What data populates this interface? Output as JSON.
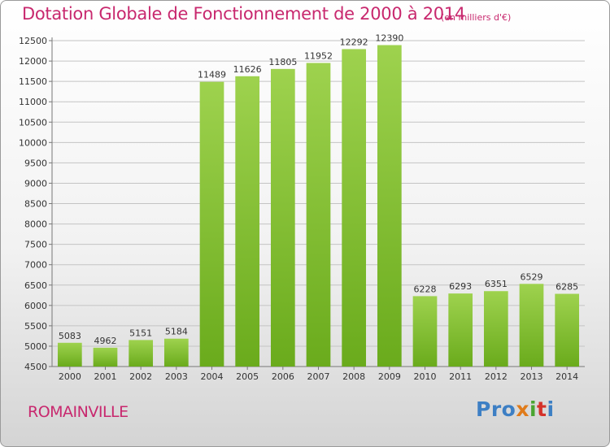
{
  "header": {
    "title": "Dotation Globale de Fonctionnement de 2000 à 2014",
    "subtitle": "(en milliers d'€)"
  },
  "commune": "ROMAINVILLE",
  "logo": {
    "text": "Proxiti",
    "parts": [
      "Pro",
      "x",
      "i",
      "t",
      "i"
    ]
  },
  "chart_data": {
    "type": "bar",
    "title": "Dotation Globale de Fonctionnement de 2000 à 2014",
    "subtitle": "(en milliers d'€)",
    "categories": [
      "2000",
      "2001",
      "2002",
      "2003",
      "2004",
      "2005",
      "2006",
      "2007",
      "2008",
      "2009",
      "2010",
      "2011",
      "2012",
      "2013",
      "2014"
    ],
    "values": [
      5083,
      4962,
      5151,
      5184,
      11489,
      11626,
      11805,
      11952,
      12292,
      12390,
      6228,
      6293,
      6351,
      6529,
      6285
    ],
    "ylim": [
      4500,
      12500
    ],
    "yticks": [
      4500,
      5000,
      5500,
      6000,
      6500,
      7000,
      7500,
      8000,
      8500,
      9000,
      9500,
      10000,
      10500,
      11000,
      11500,
      12000,
      12500
    ],
    "grid": true,
    "bar_color": "#7cbd2c",
    "xlabel": "",
    "ylabel": ""
  }
}
